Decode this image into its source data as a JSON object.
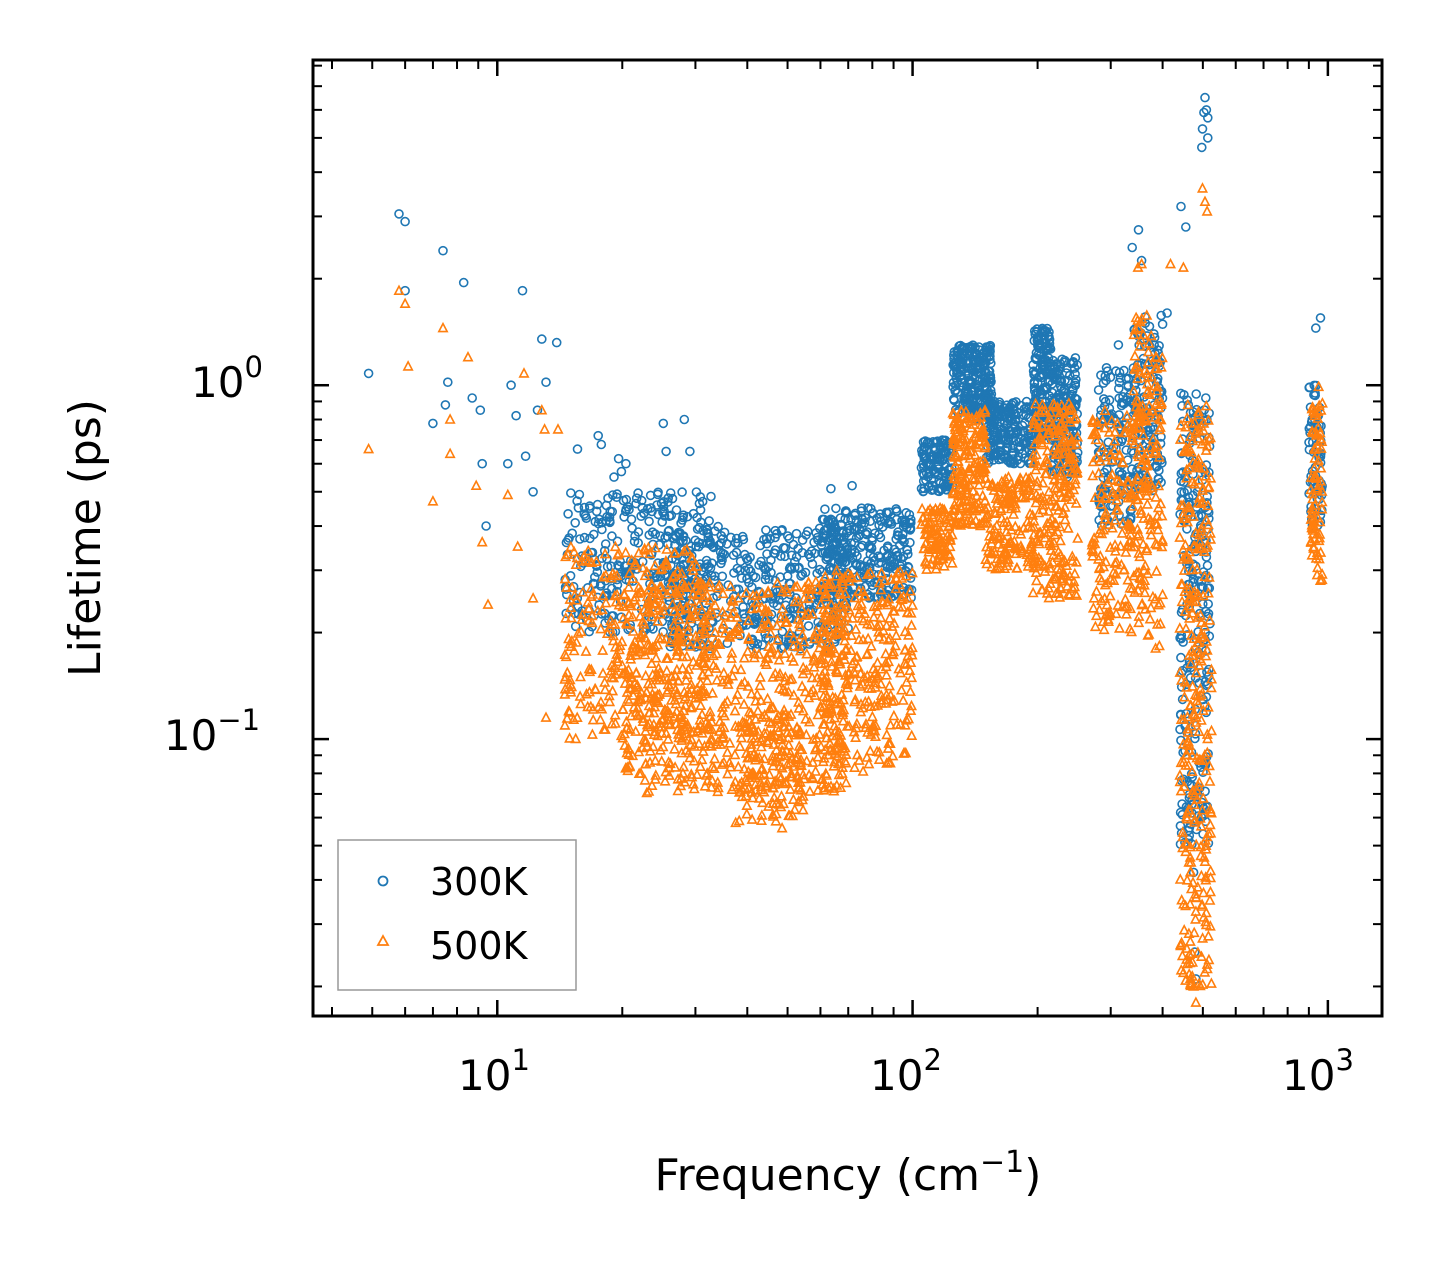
{
  "chart_data": {
    "type": "scatter",
    "xscale": "log",
    "yscale": "log",
    "xlim": [
      3.6,
      1350
    ],
    "ylim": [
      0.0165,
      8.3
    ],
    "xlabel": "Frequency (cm",
    "xlabel_sup": "−1",
    "xlabel_end": ")",
    "ylabel": "Lifetime (ps)",
    "x_ticks": [
      {
        "value": 10,
        "base": "10",
        "exp": "1"
      },
      {
        "value": 100,
        "base": "10",
        "exp": "2"
      },
      {
        "value": 1000,
        "base": "10",
        "exp": "3"
      }
    ],
    "y_ticks": [
      {
        "value": 0.1,
        "base": "10",
        "exp": "−1"
      },
      {
        "value": 1,
        "base": "10",
        "exp": "0"
      }
    ],
    "legend_position": "lower-left",
    "series": [
      {
        "name": "300K",
        "marker": "circle",
        "color": "#1f77b4",
        "outliers": [
          [
            4.9,
            1.08
          ],
          [
            5.8,
            3.05
          ],
          [
            6.0,
            2.9
          ],
          [
            6.0,
            1.85
          ],
          [
            7.0,
            0.78
          ],
          [
            7.4,
            2.4
          ],
          [
            7.5,
            0.88
          ],
          [
            7.6,
            1.02
          ],
          [
            8.3,
            1.95
          ],
          [
            8.7,
            0.92
          ],
          [
            9.1,
            0.85
          ],
          [
            9.2,
            0.6
          ],
          [
            9.4,
            0.4
          ],
          [
            10.6,
            0.6
          ],
          [
            10.8,
            1.0
          ],
          [
            11.1,
            0.82
          ],
          [
            11.5,
            1.85
          ],
          [
            11.7,
            0.63
          ],
          [
            12.2,
            0.5
          ],
          [
            12.5,
            0.85
          ],
          [
            12.8,
            1.35
          ],
          [
            13.1,
            1.02
          ],
          [
            13.9,
            1.32
          ],
          [
            15.6,
            0.66
          ],
          [
            17.5,
            0.72
          ],
          [
            17.8,
            0.68
          ],
          [
            19.1,
            0.55
          ],
          [
            19.6,
            0.62
          ],
          [
            19.9,
            0.57
          ],
          [
            20.4,
            0.6
          ],
          [
            25.1,
            0.78
          ],
          [
            25.5,
            0.65
          ],
          [
            28.2,
            0.8
          ],
          [
            29.1,
            0.65
          ],
          [
            63.6,
            0.51
          ],
          [
            71.5,
            0.52
          ],
          [
            449,
            0.077
          ],
          [
            462,
            0.052
          ],
          [
            475,
            0.042
          ],
          [
            478,
            0.025
          ],
          [
            481,
            0.021
          ],
          [
            293,
            1.12
          ],
          [
            313,
            1.3
          ],
          [
            338,
            2.45
          ],
          [
            350,
            2.75
          ],
          [
            356,
            2.25
          ],
          [
            410,
            1.6
          ],
          [
            443,
            3.2
          ],
          [
            455,
            2.8
          ],
          [
            497,
            4.7
          ],
          [
            499,
            5.3
          ],
          [
            503,
            5.9
          ],
          [
            506,
            6.5
          ],
          [
            510,
            6.0
          ],
          [
            514,
            5.7
          ],
          [
            514,
            5.0
          ],
          [
            935,
            1.45
          ],
          [
            960,
            1.55
          ]
        ],
        "clusters": [
          {
            "x": [
              14.5,
              33
            ],
            "y": [
              0.2,
              0.5
            ],
            "n": 320
          },
          {
            "x": [
              26,
              70
            ],
            "y": [
              0.18,
              0.4
            ],
            "n": 420
          },
          {
            "x": [
              60,
              100
            ],
            "y": [
              0.25,
              0.45
            ],
            "n": 300
          },
          {
            "x": [
              105,
              125
            ],
            "y": [
              0.5,
              0.7
            ],
            "n": 120
          },
          {
            "x": [
              125,
              155
            ],
            "y": [
              0.8,
              1.3
            ],
            "n": 240
          },
          {
            "x": [
              150,
              195
            ],
            "y": [
              0.6,
              0.9
            ],
            "n": 200
          },
          {
            "x": [
              195,
              215
            ],
            "y": [
              0.7,
              1.45
            ],
            "n": 150
          },
          {
            "x": [
              215,
              250
            ],
            "y": [
              0.55,
              1.2
            ],
            "n": 180
          },
          {
            "x": [
              280,
              340
            ],
            "y": [
              0.4,
              1.1
            ],
            "n": 140
          },
          {
            "x": [
              340,
              400
            ],
            "y": [
              0.5,
              1.6
            ],
            "n": 140
          },
          {
            "x": [
              440,
              520
            ],
            "y": [
              0.05,
              0.95
            ],
            "n": 260
          },
          {
            "x": [
              900,
              970
            ],
            "y": [
              0.4,
              1.0
            ],
            "n": 70
          }
        ]
      },
      {
        "name": "500K",
        "marker": "triangle",
        "color": "#ff7f0e",
        "outliers": [
          [
            4.9,
            0.66
          ],
          [
            5.8,
            1.85
          ],
          [
            6.0,
            1.7
          ],
          [
            6.1,
            1.13
          ],
          [
            7.0,
            0.47
          ],
          [
            7.4,
            1.45
          ],
          [
            7.7,
            0.64
          ],
          [
            7.7,
            0.8
          ],
          [
            8.5,
            1.2
          ],
          [
            8.9,
            0.52
          ],
          [
            9.2,
            0.36
          ],
          [
            9.5,
            0.24
          ],
          [
            10.6,
            0.49
          ],
          [
            11.2,
            0.35
          ],
          [
            11.6,
            1.08
          ],
          [
            12.2,
            0.25
          ],
          [
            12.8,
            0.85
          ],
          [
            13.0,
            0.75
          ],
          [
            13.1,
            0.115
          ],
          [
            14.0,
            0.75
          ],
          [
            37.5,
            0.058
          ],
          [
            48.5,
            0.056
          ],
          [
            54.5,
            0.063
          ],
          [
            58.4,
            0.081
          ],
          [
            76.0,
            0.081
          ],
          [
            78.5,
            0.085
          ],
          [
            72.5,
            0.083
          ],
          [
            67.8,
            0.083
          ],
          [
            356,
            2.2
          ],
          [
            349,
            2.15
          ],
          [
            418,
            2.2
          ],
          [
            449,
            2.15
          ],
          [
            499,
            3.6
          ],
          [
            506,
            3.3
          ],
          [
            512,
            3.1
          ],
          [
            481,
            0.018
          ],
          [
            475,
            0.02
          ],
          [
            950,
            0.99
          ]
        ],
        "clusters": [
          {
            "x": [
              14.5,
              33
            ],
            "y": [
              0.1,
              0.35
            ],
            "n": 320
          },
          {
            "x": [
              20,
              70
            ],
            "y": [
              0.07,
              0.28
            ],
            "n": 700
          },
          {
            "x": [
              38,
              55
            ],
            "y": [
              0.058,
              0.12
            ],
            "n": 120
          },
          {
            "x": [
              60,
              100
            ],
            "y": [
              0.085,
              0.3
            ],
            "n": 300
          },
          {
            "x": [
              105,
              125
            ],
            "y": [
              0.3,
              0.45
            ],
            "n": 100
          },
          {
            "x": [
              125,
              150
            ],
            "y": [
              0.4,
              0.85
            ],
            "n": 200
          },
          {
            "x": [
              150,
              195
            ],
            "y": [
              0.3,
              0.55
            ],
            "n": 150
          },
          {
            "x": [
              195,
              250
            ],
            "y": [
              0.25,
              0.9
            ],
            "n": 240
          },
          {
            "x": [
              270,
              340
            ],
            "y": [
              0.2,
              0.9
            ],
            "n": 160
          },
          {
            "x": [
              340,
              400
            ],
            "y": [
              0.18,
              1.6
            ],
            "n": 180
          },
          {
            "x": [
              440,
              525
            ],
            "y": [
              0.02,
              0.9
            ],
            "n": 320
          },
          {
            "x": [
              910,
              970
            ],
            "y": [
              0.28,
              0.9
            ],
            "n": 80
          }
        ]
      }
    ]
  }
}
